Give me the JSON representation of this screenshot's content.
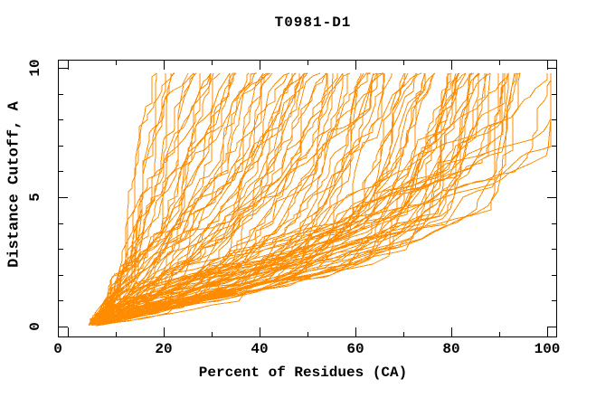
{
  "page": {
    "background": "#FFFFFF"
  },
  "chart_data": {
    "type": "line",
    "title": "T0981-D1",
    "xlabel": "Percent of Residues (CA)",
    "ylabel": "Distance Cutoff, A",
    "xlim": [
      -2,
      102
    ],
    "ylim": [
      -0.42,
      10.31
    ],
    "grid": false,
    "legend": null,
    "series_color": "#FF8C00",
    "axis_color": "#000000",
    "x_axis": {
      "minor_tick_step": 10,
      "major_tick_values": [
        0,
        20,
        40,
        60,
        80,
        100
      ],
      "tick_labels": [
        "0",
        "20",
        "40",
        "60",
        "80",
        "100"
      ],
      "label_dx": [
        -11,
        0,
        0,
        0,
        0,
        0
      ]
    },
    "y_axis": {
      "minor_tick_step": 1,
      "major_tick_values": [
        0,
        5,
        10
      ],
      "tick_labels": [
        "0",
        "5",
        "10"
      ]
    },
    "description": "Per-model cumulative accuracy curves for CASP target T0981-D1: each orange curve shows, for one predicted model, the percent of CA residues (x) fitting under a distance cutoff in Angstroms (y). Curves start near (5,0.1) at bottom-left and rise monotonically to y=9.8, topping out between x=17 (worst model) and x=100 (best models).",
    "n_curves": 112,
    "curve_top_y": 9.8,
    "curve_top_x_range": [
      17,
      100
    ],
    "generation": {
      "seed": 981,
      "y_top": 9.8,
      "y_knots": [
        0,
        0.5,
        0.8,
        1.3,
        1.8,
        2.5,
        4,
        6,
        8,
        9.8
      ],
      "x_best": [
        5,
        30,
        50,
        75,
        88,
        92,
        95,
        97,
        98.5,
        100
      ],
      "x_worst": [
        4.8,
        6.5,
        7.2,
        8.2,
        9,
        10,
        11.5,
        13.5,
        15.5,
        17
      ],
      "exponents": [
        2.3,
        2.3,
        2.1,
        1.9,
        1.7,
        1.5,
        1.25,
        1.05,
        0.95,
        0.85
      ],
      "knot_jitter": [
        0.4,
        3,
        4,
        5,
        5,
        6,
        7,
        7,
        6,
        3
      ],
      "amp_jitter": 0.22
    }
  }
}
